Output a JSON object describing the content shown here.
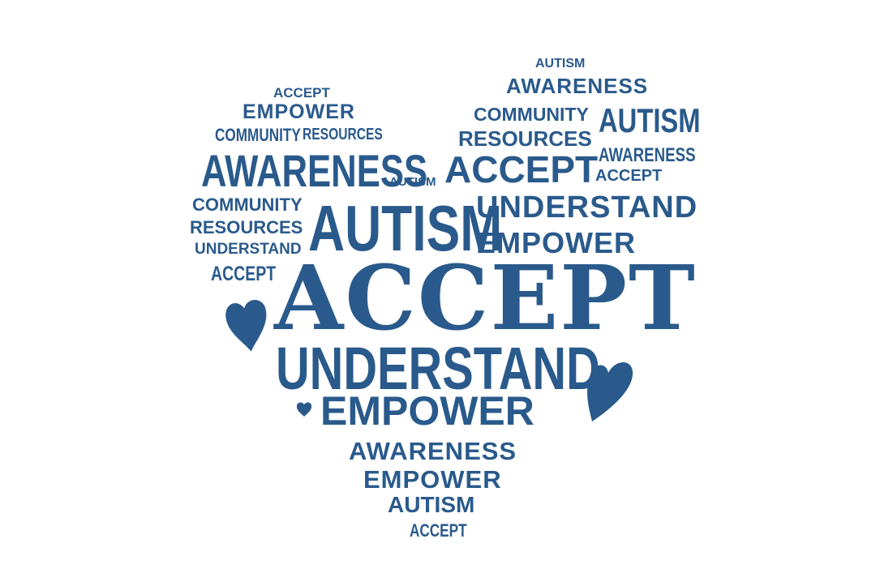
{
  "accent_color": "#2a5a8c",
  "background_color": "#ffffff",
  "shape": "heart",
  "words": [
    "AUTISM",
    "AWARENESS",
    "ACCEPT",
    "EMPOWER",
    "COMMUNITY",
    "AUTISM",
    "COMMUNITY",
    "RESOURCES",
    "RESOURCES",
    "AWARENESS",
    "AWARENESS",
    "AUTISM",
    "ACCEPT",
    "ACCEPT",
    "COMMUNITY",
    "UNDERSTAND",
    "RESOURCES",
    "AUTISM",
    "EMPOWER",
    "UNDERSTAND",
    "ACCEPT",
    "ACCEPT",
    "UNDERSTAND",
    "EMPOWER",
    "AWARENESS",
    "EMPOWER",
    "AUTISM",
    "ACCEPT"
  ],
  "decorations": [
    "heart-icon",
    "heart-icon",
    "heart-icon"
  ]
}
